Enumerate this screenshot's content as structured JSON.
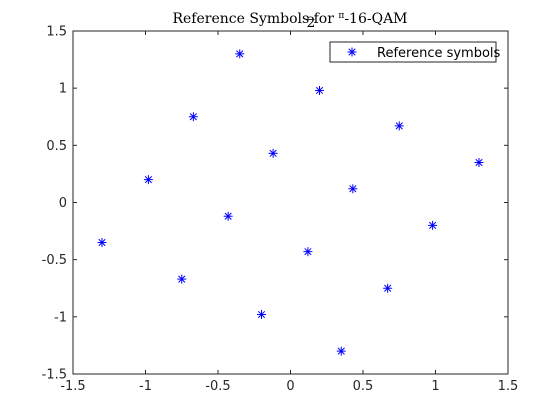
{
  "chart_data": {
    "type": "scatter",
    "title_prefix": "Reference Symbols for ",
    "title_frac_num": "π",
    "title_frac_den": "2",
    "title_suffix": "-16-QAM",
    "xlabel": "",
    "ylabel": "",
    "xlim": [
      -1.5,
      1.5
    ],
    "ylim": [
      -1.5,
      1.5
    ],
    "xticks": [
      -1.5,
      -1,
      -0.5,
      0,
      0.5,
      1,
      1.5
    ],
    "xtick_labels": [
      "-1.5",
      "-1",
      "-0.5",
      "0",
      "0.5",
      "1",
      "1.5"
    ],
    "yticks": [
      -1.5,
      -1,
      -0.5,
      0,
      0.5,
      1,
      1.5
    ],
    "ytick_labels": [
      "-1.5",
      "-1",
      "-0.5",
      "0",
      "0.5",
      "1",
      "1.5"
    ],
    "grid": false,
    "legend_position": "top-right",
    "series": [
      {
        "name": "Reference symbols",
        "marker": "asterisk",
        "color": "#0000ff",
        "x": [
          -0.35,
          0.2,
          0.75,
          1.3,
          -0.67,
          -0.12,
          0.43,
          0.98,
          -0.98,
          -0.43,
          0.12,
          0.67,
          -1.3,
          -0.75,
          -0.2,
          0.35
        ],
        "y": [
          1.3,
          0.98,
          0.67,
          0.35,
          0.75,
          0.43,
          0.12,
          -0.2,
          0.2,
          -0.12,
          -0.43,
          -0.75,
          -0.35,
          -0.67,
          -0.98,
          -1.3
        ]
      }
    ]
  }
}
